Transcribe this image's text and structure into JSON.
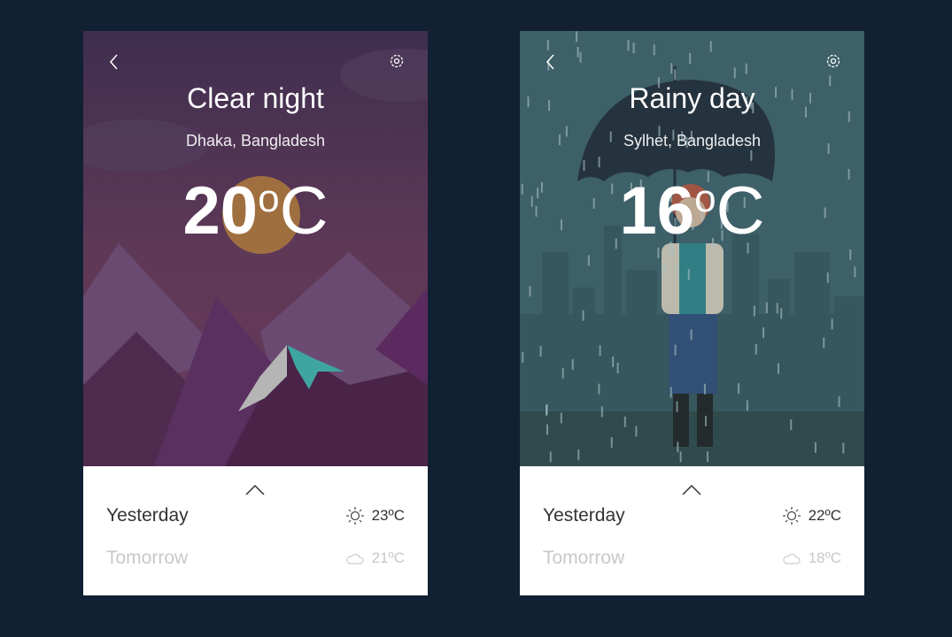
{
  "cards": [
    {
      "condition": "Clear night",
      "location": "Dhaka, Bangladesh",
      "temp": "20",
      "degree": "o",
      "unit": "C",
      "forecast": [
        {
          "label": "Yesterday",
          "icon": "sun-icon",
          "temp": "23ºC"
        },
        {
          "label": "Tomorrow",
          "icon": "cloud-icon",
          "temp": "21ºC"
        }
      ]
    },
    {
      "condition": "Rainy day",
      "location": "Sylhet, Bangladesh",
      "temp": "16",
      "degree": "o",
      "unit": "C",
      "forecast": [
        {
          "label": "Yesterday",
          "icon": "sun-icon",
          "temp": "22ºC"
        },
        {
          "label": "Tomorrow",
          "icon": "cloud-icon",
          "temp": "18ºC"
        }
      ]
    }
  ],
  "colors": {
    "background": "#112033",
    "night": "#4a3355",
    "rain": "#3c6066"
  }
}
